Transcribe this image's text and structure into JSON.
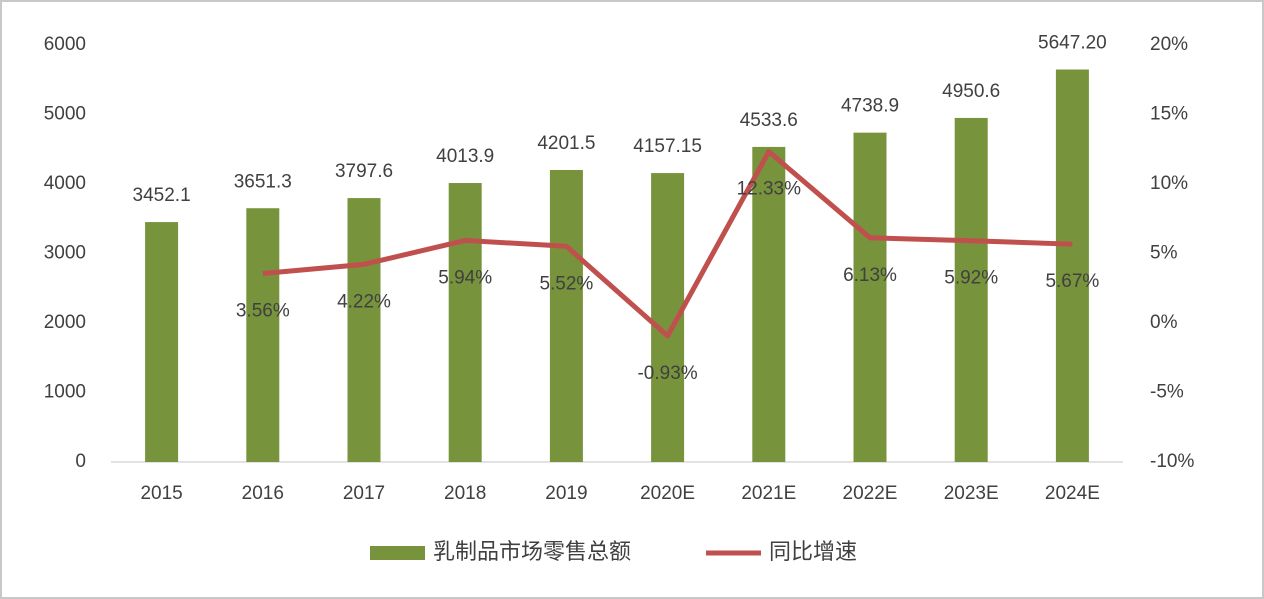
{
  "chart_data": {
    "type": "bar",
    "categories": [
      "2015",
      "2016",
      "2017",
      "2018",
      "2019",
      "2020E",
      "2021E",
      "2022E",
      "2023E",
      "2024E"
    ],
    "series": [
      {
        "name": "乳制品市场零售总额",
        "type": "bar",
        "color": "#77933c",
        "values": [
          3452.1,
          3651.3,
          3797.6,
          4013.9,
          4201.5,
          4157.15,
          4533.6,
          4738.9,
          4950.6,
          5647.2
        ],
        "value_labels": [
          "3452.1",
          "3651.3",
          "3797.6",
          "4013.9",
          "4201.5",
          "4157.15",
          "4533.6",
          "4738.9",
          "4950.6",
          "5647.20"
        ]
      },
      {
        "name": "同比增速",
        "type": "line",
        "color": "#c0504d",
        "axis": "y2",
        "values": [
          null,
          3.56,
          4.22,
          5.94,
          5.52,
          -0.93,
          12.33,
          6.13,
          5.92,
          5.67
        ],
        "value_labels": [
          null,
          "3.56%",
          "4.22%",
          "5.94%",
          "5.52%",
          "-0.93%",
          "12.33%",
          "6.13%",
          "5.92%",
          "5.67%"
        ]
      }
    ],
    "ylim": [
      0,
      6000
    ],
    "yticks": [
      0,
      1000,
      2000,
      3000,
      4000,
      5000,
      6000
    ],
    "y2lim": [
      -10,
      20
    ],
    "y2ticks": [
      {
        "value": -10,
        "label": "-10%"
      },
      {
        "value": -5,
        "label": "-5%"
      },
      {
        "value": 0,
        "label": "0%"
      },
      {
        "value": 5,
        "label": "5%"
      },
      {
        "value": 10,
        "label": "10%"
      },
      {
        "value": 15,
        "label": "15%"
      },
      {
        "value": 20,
        "label": "20%"
      }
    ],
    "legend": "bottom"
  }
}
